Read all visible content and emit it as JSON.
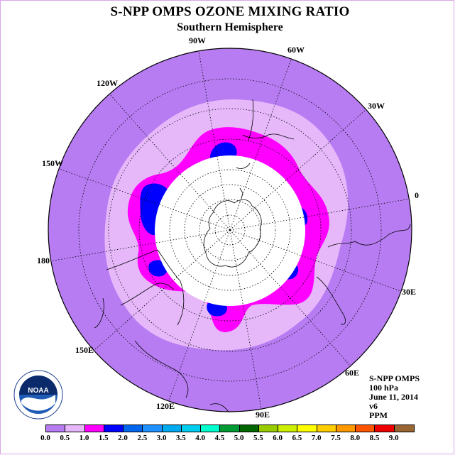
{
  "title": "S-NPP OMPS OZONE MIXING RATIO",
  "subtitle": "Southern Hemisphere",
  "longitude_labels": [
    "90W",
    "60W",
    "30W",
    "0",
    "30E",
    "60E",
    "90E",
    "120E",
    "150E",
    "180",
    "150W",
    "120W"
  ],
  "info": {
    "instrument": "S-NPP OMPS",
    "level": "100 hPa",
    "date": "June 11, 2014",
    "version": "v6",
    "units": "PPM"
  },
  "logo": {
    "name": "noaa-logo",
    "text": "NOAA",
    "ring_text": "NATIONAL OCEANIC AND ATMOSPHERIC ADMINISTRATION U.S. DEPARTMENT OF COMMERCE"
  },
  "colorbar": {
    "ticks": [
      "0.0",
      "0.5",
      "1.0",
      "1.5",
      "2.0",
      "2.5",
      "3.0",
      "3.5",
      "4.0",
      "4.5",
      "5.0",
      "5.5",
      "6.0",
      "6.5",
      "7.0",
      "7.5",
      "8.0",
      "8.5",
      "9.0"
    ],
    "colors": [
      "#b77cf2",
      "#e6b8fa",
      "#ff00ff",
      "#0000ff",
      "#0066ee",
      "#1e90ff",
      "#00aaee",
      "#00ccee",
      "#00ffcc",
      "#009933",
      "#006600",
      "#99cc00",
      "#ccee00",
      "#ffff00",
      "#ffcc00",
      "#ff9900",
      "#ff5500",
      "#ee0000",
      "#996633"
    ]
  },
  "map_colors": {
    "outer": "#b77cf2",
    "band_0_5": "#e6b8fa",
    "band_1_0": "#ff00ff",
    "band_1_5": "#0000ff",
    "missing": "#ffffff"
  }
}
